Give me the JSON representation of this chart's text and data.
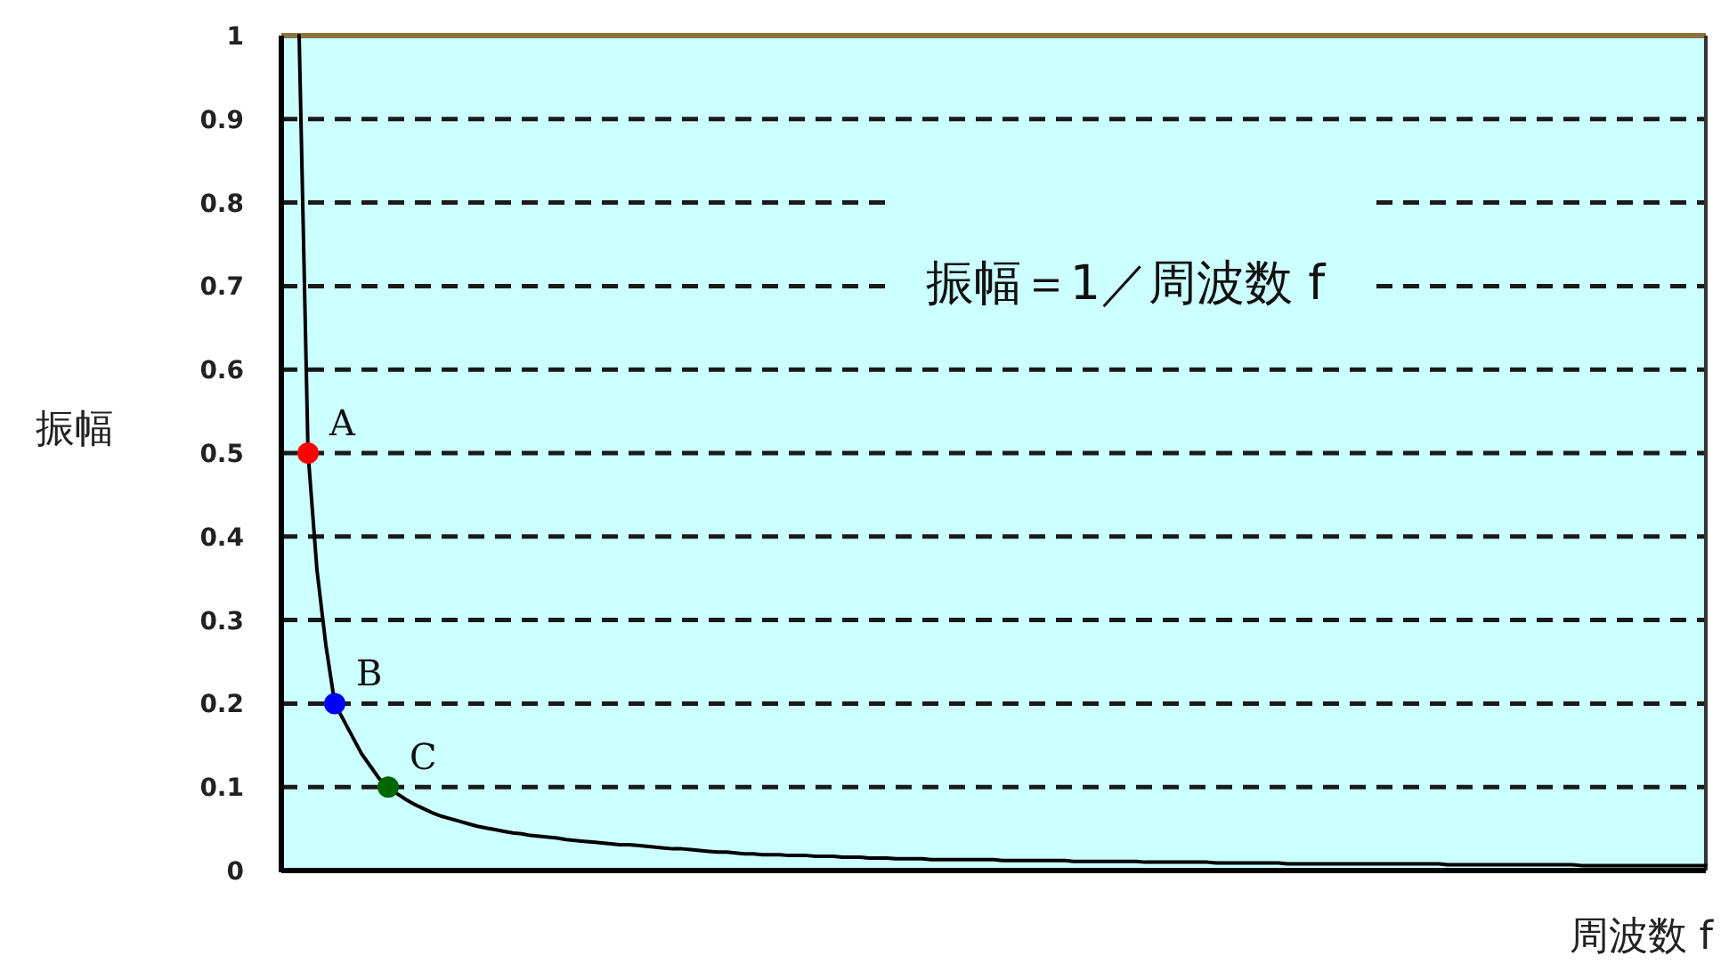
{
  "chart_data": {
    "type": "line",
    "ylabel": "振幅",
    "xlabel": "周波数 f",
    "annotations": [
      "振幅＝1／周波数 f"
    ],
    "categories": [
      null,
      null,
      null,
      null,
      null,
      null,
      null,
      null,
      null,
      null,
      null,
      null,
      null,
      null,
      null,
      null,
      null,
      null,
      null,
      null,
      null,
      null,
      null,
      null,
      null,
      null,
      null,
      null,
      null,
      null,
      null,
      null,
      null,
      null,
      null,
      null,
      null,
      null,
      null,
      null,
      null,
      null,
      null,
      null,
      null,
      null,
      null,
      null,
      null,
      null,
      null,
      null,
      null,
      null,
      null,
      null,
      null,
      null,
      null,
      null,
      null,
      null,
      null,
      null,
      null,
      null,
      null,
      null,
      null,
      null,
      null,
      null,
      null,
      null,
      null,
      null,
      null,
      null,
      null,
      null,
      null,
      null,
      null,
      null,
      null,
      null,
      null,
      null,
      null,
      null,
      null,
      null,
      null,
      null,
      null,
      null,
      null,
      null,
      null,
      null,
      null,
      null,
      null,
      null,
      null,
      null,
      null,
      null,
      null,
      null,
      null,
      null,
      null,
      null,
      null,
      null,
      null,
      null,
      null,
      null,
      null,
      null,
      null,
      null,
      null,
      null,
      null,
      null,
      null,
      null,
      null,
      null,
      null,
      null,
      null,
      null,
      null,
      null,
      null,
      null,
      null,
      null,
      null,
      null,
      null,
      null,
      null,
      null,
      null,
      null,
      null,
      null,
      null,
      null,
      null,
      null,
      null,
      null,
      null,
      null,
      null
    ],
    "ylim": [
      0,
      1
    ],
    "yticks": [
      0,
      0.1,
      0.2,
      0.3,
      0.4,
      0.5,
      0.6,
      0.7,
      0.8,
      0.9,
      1
    ],
    "grid": "y",
    "series": [
      {
        "color": "#000000",
        "line_style": "solid",
        "values": [
          null,
          null,
          1.0,
          0.5,
          0.36,
          0.27,
          0.2,
          0.18,
          0.16,
          0.14,
          0.125,
          0.11,
          0.1,
          0.092,
          0.085,
          0.079,
          0.074,
          0.069,
          0.065,
          0.062,
          0.059,
          0.056,
          0.053,
          0.051,
          0.049,
          0.047,
          0.045,
          0.044,
          0.042,
          0.041,
          0.04,
          0.039,
          0.037,
          0.036,
          0.035,
          0.034,
          0.033,
          0.032,
          0.031,
          0.031,
          0.03,
          0.029,
          0.028,
          0.027,
          0.026,
          0.026,
          0.025,
          0.024,
          0.023,
          0.022,
          0.022,
          0.021,
          0.02,
          0.02,
          0.019,
          0.019,
          0.019,
          0.018,
          0.018,
          0.018,
          0.017,
          0.017,
          0.017,
          0.016,
          0.016,
          0.016,
          0.015,
          0.015,
          0.015,
          0.014,
          0.014,
          0.014,
          0.014,
          0.013,
          0.013,
          0.013,
          0.013,
          0.013,
          0.013,
          0.013,
          0.013,
          0.012,
          0.012,
          0.012,
          0.012,
          0.012,
          0.012,
          0.012,
          0.012,
          0.011,
          0.011,
          0.011,
          0.011,
          0.011,
          0.011,
          0.011,
          0.011,
          0.01,
          0.01,
          0.01,
          0.01,
          0.01,
          0.01,
          0.01,
          0.01,
          0.009,
          0.009,
          0.009,
          0.009,
          0.009,
          0.009,
          0.009,
          0.009,
          0.008,
          0.008,
          0.008,
          0.008,
          0.008,
          0.008,
          0.008,
          0.008,
          0.008,
          0.008,
          0.008,
          0.008,
          0.008,
          0.008,
          0.008,
          0.008,
          0.008,
          0.008,
          0.007,
          0.007,
          0.007,
          0.007,
          0.007,
          0.007,
          0.007,
          0.007,
          0.007,
          0.007,
          0.007,
          0.007,
          0.007,
          0.007,
          0.007,
          0.006,
          0.006,
          0.006,
          0.006,
          0.006,
          0.006,
          0.006,
          0.006,
          0.006,
          0.006,
          0.006,
          0.006,
          0.006,
          0.006,
          0.006
        ]
      },
      {
        "type": "scatter",
        "marker": "circle",
        "values": [
          null,
          null,
          null,
          0.5,
          null,
          null,
          0.2,
          null,
          null,
          null,
          null,
          null,
          0.1,
          null,
          null,
          null,
          null,
          null,
          null,
          null,
          null,
          null,
          null,
          null,
          null,
          null,
          null,
          null,
          null,
          null,
          null,
          null,
          null,
          null,
          null,
          null,
          null,
          null,
          null,
          null,
          null,
          null,
          null,
          null,
          null,
          null,
          null,
          null,
          null,
          null,
          null,
          null,
          null,
          null,
          null,
          null,
          null,
          null,
          null,
          null,
          null,
          null,
          null,
          null,
          null,
          null,
          null,
          null,
          null,
          null,
          null,
          null,
          null,
          null,
          null,
          null,
          null,
          null,
          null,
          null,
          null,
          null,
          null,
          null,
          null,
          null,
          null,
          null,
          null,
          null,
          null,
          null,
          null,
          null,
          null,
          null,
          null,
          null,
          null,
          null,
          null,
          null,
          null,
          null,
          null,
          null,
          null,
          null,
          null,
          null,
          null,
          null,
          null,
          null,
          null,
          null,
          null,
          null,
          null,
          null,
          null,
          null,
          null,
          null,
          null,
          null,
          null,
          null,
          null,
          null,
          null,
          null,
          null,
          null,
          null,
          null,
          null,
          null,
          null,
          null,
          null,
          null,
          null,
          null,
          null,
          null,
          null,
          null,
          null,
          null,
          null,
          null,
          null,
          null,
          null,
          null,
          null,
          null,
          null,
          null,
          null
        ],
        "colors": [
          null,
          null,
          null,
          "#ff0000",
          null,
          null,
          "#0000ff",
          null,
          null,
          null,
          null,
          null,
          "#006600",
          null,
          null,
          null,
          null,
          null,
          null,
          null,
          null,
          null,
          null,
          null,
          null,
          null,
          null,
          null,
          null,
          null,
          null,
          null,
          null,
          null,
          null,
          null,
          null,
          null,
          null,
          null,
          null,
          null,
          null,
          null,
          null,
          null,
          null,
          null,
          null,
          null,
          null,
          null,
          null,
          null,
          null,
          null,
          null,
          null,
          null,
          null,
          null,
          null,
          null,
          null,
          null,
          null,
          null,
          null,
          null,
          null,
          null,
          null,
          null,
          null,
          null,
          null,
          null,
          null,
          null,
          null,
          null,
          null,
          null,
          null,
          null,
          null,
          null,
          null,
          null,
          null,
          null,
          null,
          null,
          null,
          null,
          null,
          null,
          null,
          null,
          null,
          null,
          null,
          null,
          null,
          null,
          null,
          null,
          null,
          null,
          null,
          null,
          null,
          null,
          null,
          null,
          null,
          null,
          null,
          null,
          null,
          null,
          null,
          null,
          null,
          null,
          null,
          null,
          null,
          null,
          null,
          null,
          null,
          null,
          null,
          null,
          null,
          null,
          null,
          null,
          null,
          null,
          null,
          null,
          null,
          null,
          null,
          null,
          null,
          null,
          null,
          null,
          null,
          null,
          null,
          null,
          null,
          null,
          null,
          null,
          null,
          null
        ],
        "value_labels": [
          null,
          null,
          null,
          "A",
          null,
          null,
          "B",
          null,
          null,
          null,
          null,
          null,
          "C",
          null,
          null,
          null,
          null,
          null,
          null,
          null,
          null,
          null,
          null,
          null,
          null,
          null,
          null,
          null,
          null,
          null,
          null,
          null,
          null,
          null,
          null,
          null,
          null,
          null,
          null,
          null,
          null,
          null,
          null,
          null,
          null,
          null,
          null,
          null,
          null,
          null,
          null,
          null,
          null,
          null,
          null,
          null,
          null,
          null,
          null,
          null,
          null,
          null,
          null,
          null,
          null,
          null,
          null,
          null,
          null,
          null,
          null,
          null,
          null,
          null,
          null,
          null,
          null,
          null,
          null,
          null,
          null,
          null,
          null,
          null,
          null,
          null,
          null,
          null,
          null,
          null,
          null,
          null,
          null,
          null,
          null,
          null,
          null,
          null,
          null,
          null,
          null,
          null,
          null,
          null,
          null,
          null,
          null,
          null,
          null,
          null,
          null,
          null,
          null,
          null,
          null,
          null,
          null,
          null,
          null,
          null,
          null,
          null,
          null,
          null,
          null,
          null,
          null,
          null,
          null,
          null,
          null,
          null,
          null,
          null,
          null,
          null,
          null,
          null,
          null,
          null,
          null,
          null,
          null,
          null,
          null,
          null,
          null,
          null,
          null,
          null,
          null,
          null,
          null,
          null,
          null,
          null,
          null,
          null,
          null,
          null,
          null
        ]
      }
    ]
  }
}
